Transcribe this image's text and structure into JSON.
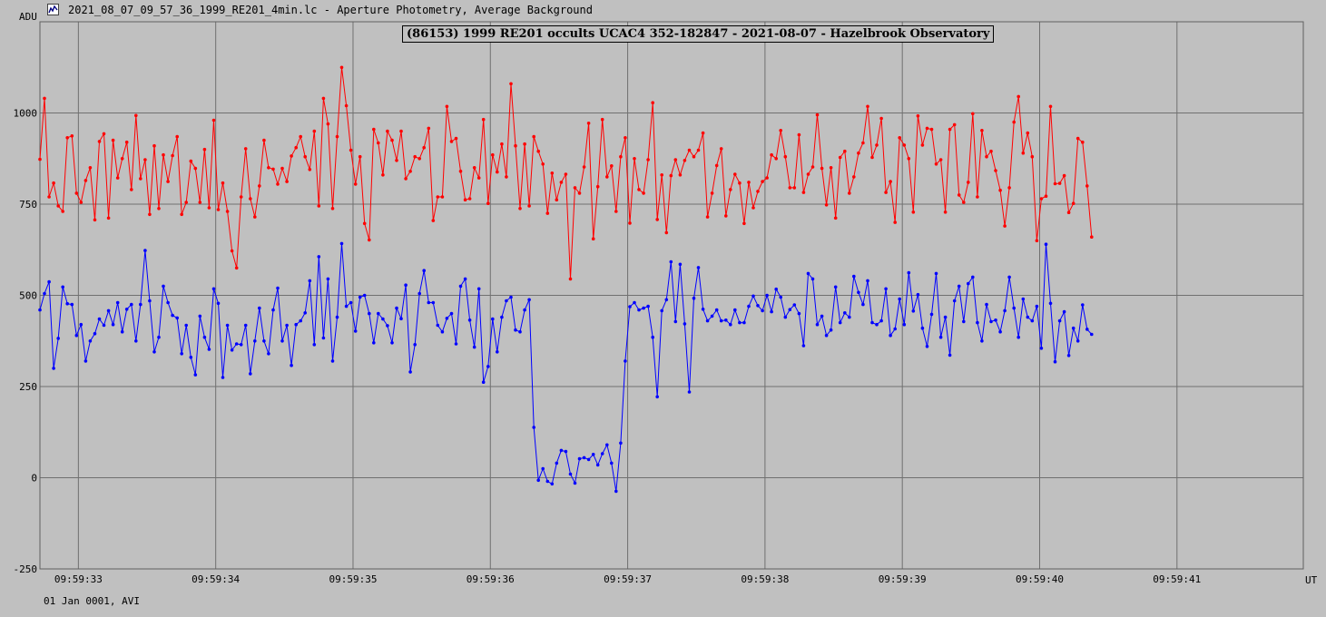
{
  "window": {
    "title": "2021_08_07_09_57_36_1999_RE201_4min.lc - Aperture Photometry, Average Background",
    "icon": "chart-icon"
  },
  "footer": {
    "date_label": "01 Jan 0001, AVI"
  },
  "chart_data": {
    "type": "line",
    "title": "(86153) 1999 RE201 occults UCAC4 352-182847 - 2021-08-07 - Hazelbrook Observatory",
    "xlabel": "UT",
    "ylabel": "ADU",
    "xlim": [
      32.72,
      41.92
    ],
    "ylim": [
      -250,
      1250
    ],
    "grid": true,
    "x_ticks": [
      {
        "value": 33,
        "label": "09:59:33"
      },
      {
        "value": 34,
        "label": "09:59:34"
      },
      {
        "value": 35,
        "label": "09:59:35"
      },
      {
        "value": 36,
        "label": "09:59:36"
      },
      {
        "value": 37,
        "label": "09:59:37"
      },
      {
        "value": 38,
        "label": "09:59:38"
      },
      {
        "value": 39,
        "label": "09:59:39"
      },
      {
        "value": 40,
        "label": "09:59:40"
      },
      {
        "value": 41,
        "label": "09:59:41"
      }
    ],
    "y_ticks": [
      {
        "value": -250,
        "label": "-250"
      },
      {
        "value": 0,
        "label": "0"
      },
      {
        "value": 250,
        "label": "250"
      },
      {
        "value": 500,
        "label": "500"
      },
      {
        "value": 750,
        "label": "750"
      },
      {
        "value": 1000,
        "label": "1000"
      }
    ],
    "x_start": 32.72,
    "x_step": 0.0333,
    "series": [
      {
        "color": "#ff0000",
        "values": [
          873,
          1040,
          770,
          808,
          745,
          730,
          932,
          937,
          780,
          755,
          815,
          850,
          707,
          922,
          943,
          712,
          925,
          822,
          875,
          920,
          790,
          993,
          820,
          872,
          722,
          910,
          738,
          885,
          812,
          883,
          935,
          722,
          755,
          868,
          848,
          755,
          900,
          740,
          980,
          735,
          808,
          730,
          622,
          575,
          770,
          902,
          765,
          715,
          800,
          925,
          850,
          846,
          805,
          848,
          812,
          882,
          905,
          935,
          880,
          845,
          950,
          745,
          1040,
          970,
          738,
          935,
          1125,
          1020,
          898,
          805,
          880,
          697,
          652,
          955,
          918,
          830,
          950,
          925,
          870,
          950,
          820,
          840,
          880,
          875,
          905,
          958,
          705,
          770,
          770,
          1018,
          922,
          930,
          840,
          762,
          765,
          850,
          822,
          982,
          752,
          885,
          838,
          915,
          825,
          1080,
          910,
          738,
          915,
          745,
          935,
          895,
          860,
          725,
          835,
          762,
          810,
          832,
          545,
          795,
          780,
          852,
          972,
          655,
          798,
          982,
          825,
          855,
          730,
          880,
          932,
          698,
          875,
          790,
          780,
          872,
          1028,
          708,
          830,
          672,
          828,
          872,
          830,
          870,
          898,
          880,
          898,
          945,
          715,
          780,
          856,
          902,
          718,
          790,
          832,
          808,
          697,
          810,
          740,
          785,
          812,
          822,
          885,
          875,
          952,
          880,
          795,
          795,
          940,
          782,
          832,
          852,
          995,
          848,
          748,
          850,
          712,
          878,
          895,
          780,
          825,
          890,
          918,
          1018,
          878,
          912,
          985,
          782,
          812,
          700,
          932,
          912,
          875,
          728,
          992,
          912,
          958,
          955,
          860,
          872,
          728,
          955,
          968,
          775,
          755,
          810,
          998,
          770,
          952,
          880,
          895,
          842,
          788,
          690,
          795,
          975,
          1045,
          890,
          945,
          880,
          650,
          765,
          772,
          1018,
          806,
          807,
          828,
          727,
          752,
          930,
          920,
          800,
          660
        ]
      },
      {
        "color": "#0000ff",
        "values": [
          460,
          505,
          537,
          300,
          382,
          523,
          477,
          475,
          390,
          420,
          320,
          375,
          395,
          435,
          418,
          458,
          420,
          480,
          400,
          462,
          475,
          375,
          475,
          623,
          485,
          345,
          385,
          525,
          480,
          445,
          438,
          340,
          418,
          330,
          282,
          443,
          385,
          352,
          518,
          478,
          275,
          418,
          350,
          367,
          365,
          418,
          285,
          375,
          465,
          375,
          340,
          460,
          520,
          375,
          418,
          308,
          420,
          430,
          452,
          540,
          365,
          606,
          383,
          545,
          320,
          440,
          642,
          470,
          480,
          402,
          495,
          500,
          450,
          370,
          450,
          435,
          417,
          370,
          465,
          436,
          528,
          290,
          365,
          505,
          568,
          480,
          480,
          418,
          400,
          437,
          450,
          367,
          525,
          545,
          432,
          358,
          518,
          262,
          305,
          435,
          345,
          440,
          485,
          495,
          405,
          400,
          460,
          488,
          138,
          -7,
          25,
          -10,
          -17,
          40,
          75,
          72,
          10,
          -15,
          52,
          55,
          50,
          64,
          35,
          66,
          90,
          40,
          -37,
          95,
          320,
          469,
          480,
          460,
          465,
          470,
          385,
          222,
          458,
          488,
          592,
          428,
          585,
          422,
          235,
          492,
          576,
          462,
          430,
          443,
          460,
          430,
          432,
          420,
          460,
          425,
          425,
          470,
          498,
          472,
          458,
          500,
          455,
          517,
          495,
          440,
          461,
          474,
          450,
          362,
          560,
          545,
          420,
          443,
          390,
          405,
          523,
          425,
          452,
          440,
          552,
          508,
          475,
          540,
          425,
          420,
          430,
          518,
          390,
          408,
          490,
          420,
          562,
          457,
          502,
          410,
          360,
          448,
          560,
          385,
          440,
          336,
          485,
          525,
          428,
          532,
          550,
          425,
          375,
          475,
          428,
          432,
          400,
          458,
          550,
          465,
          385,
          490,
          440,
          430,
          470,
          355,
          640,
          478,
          318,
          430,
          455,
          335,
          410,
          375,
          474,
          407,
          393
        ]
      }
    ]
  }
}
